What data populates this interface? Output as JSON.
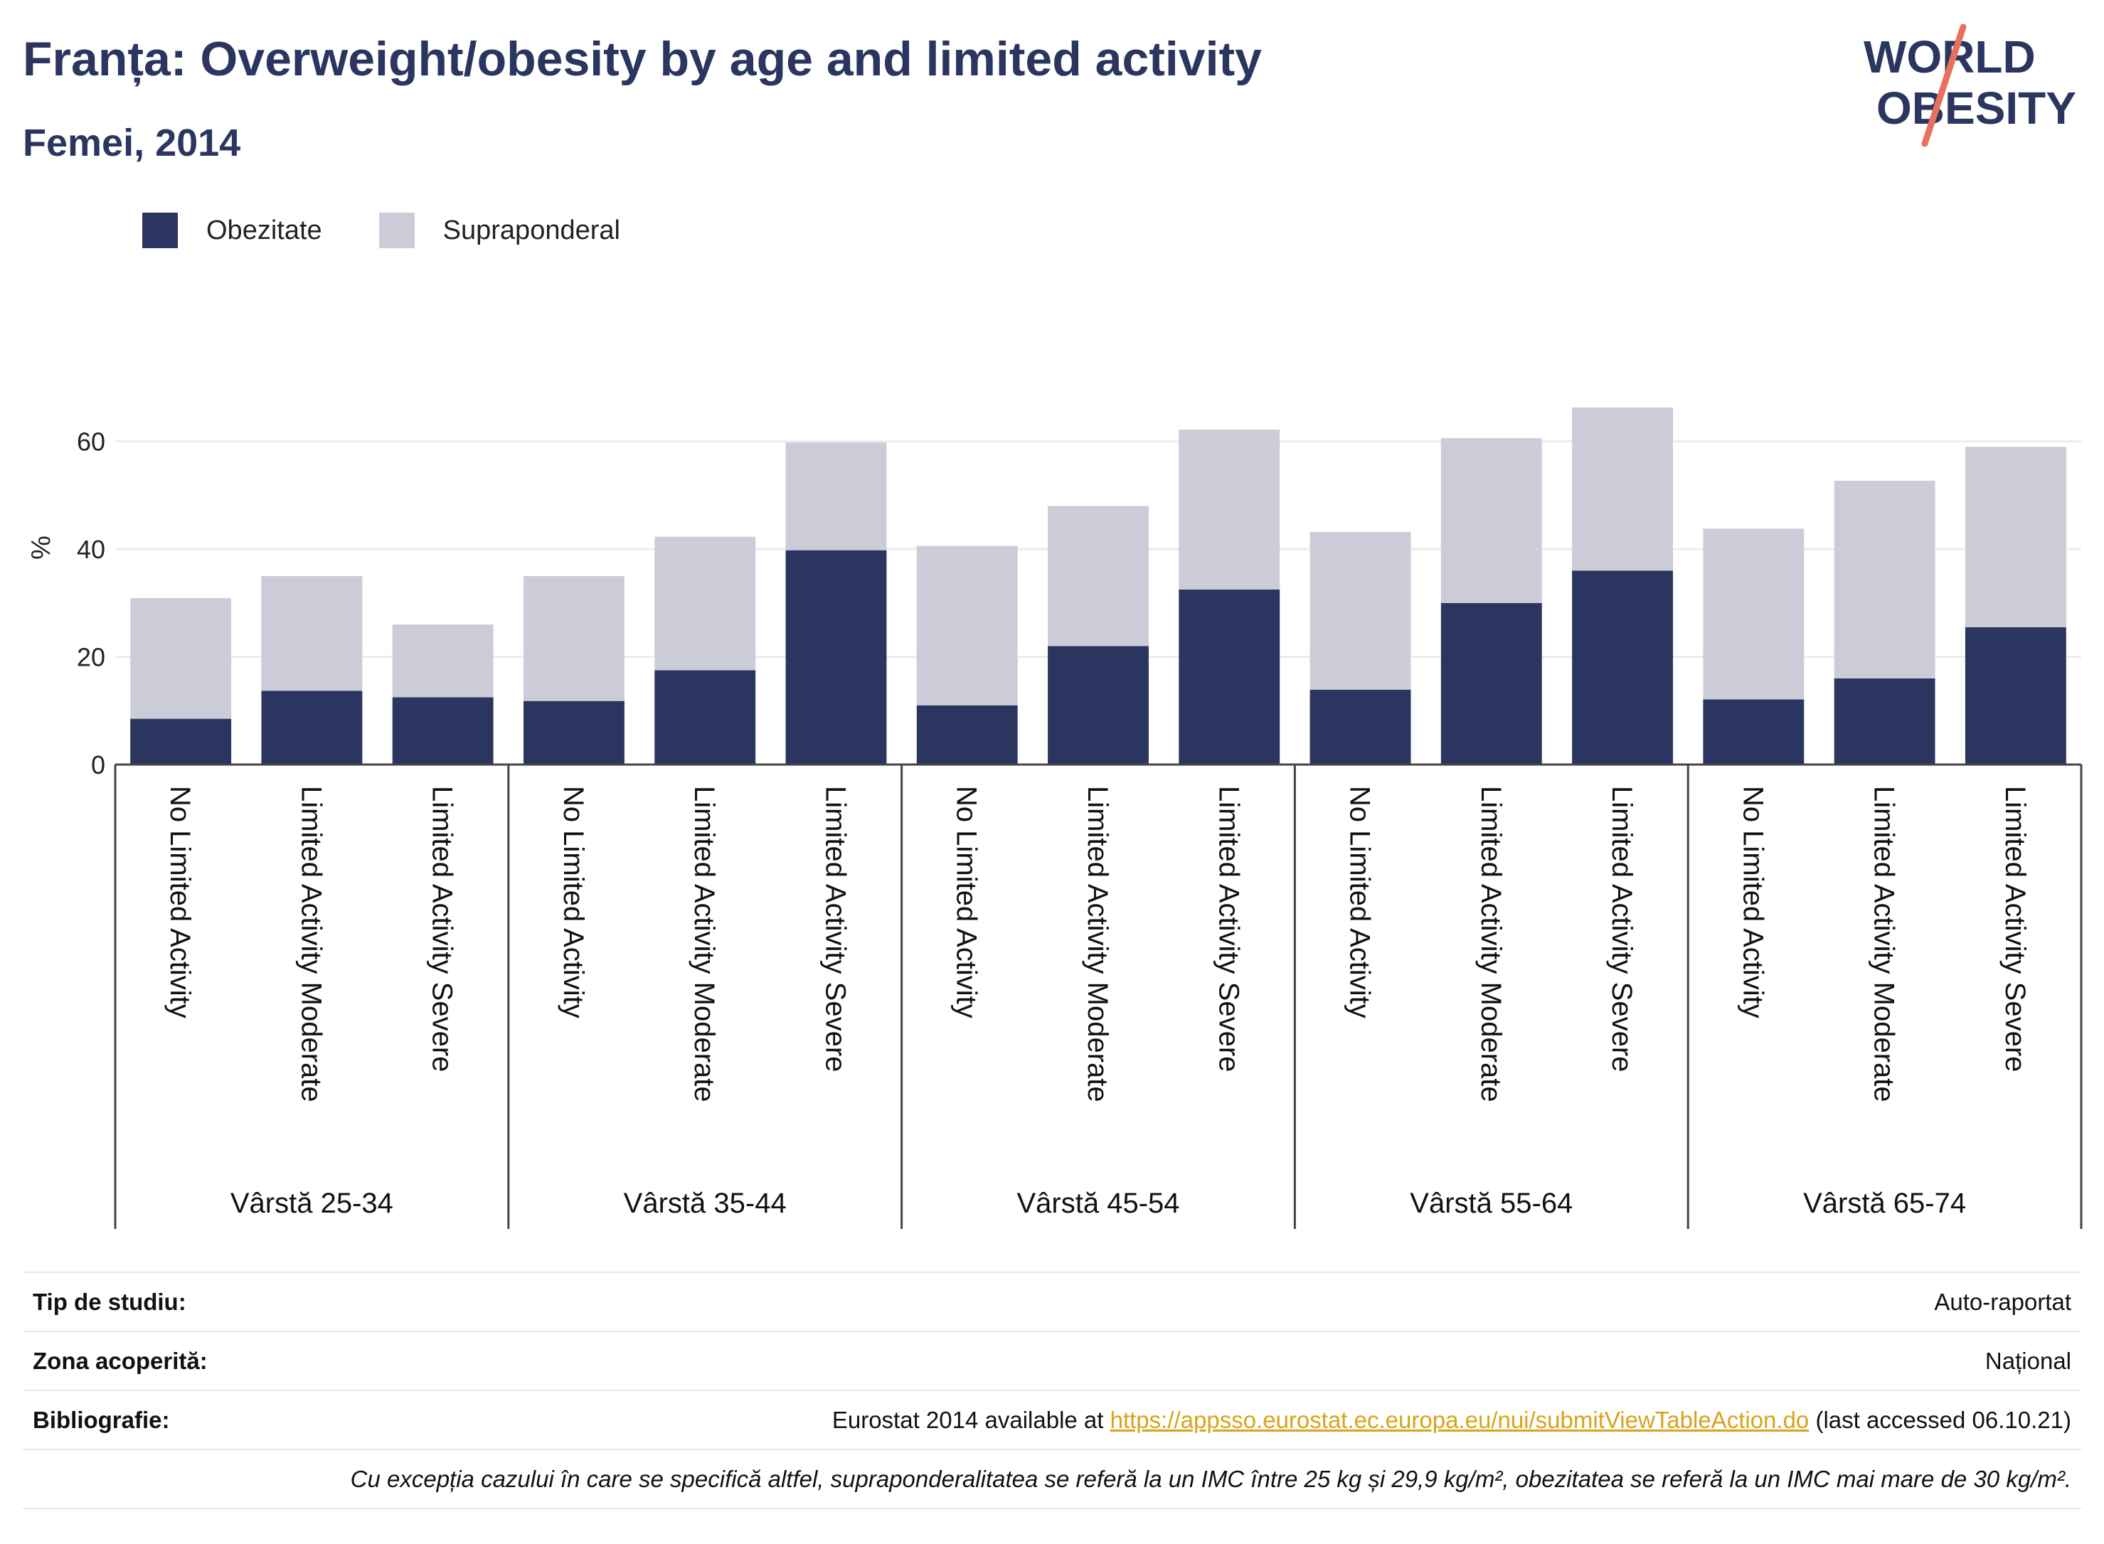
{
  "header": {
    "title": "Franța: Overweight/obesity by age and limited activity",
    "subtitle": "Femei, 2014"
  },
  "logo": {
    "line1": "WORLD",
    "line2": "OBESITY",
    "accent_color": "#e8705f",
    "text_color": "#2b3660"
  },
  "colors": {
    "obesity": "#2b3660",
    "overweight": "#cbccd8",
    "axis": "#444444",
    "grid": "#ececec"
  },
  "chart_data": {
    "type": "bar",
    "stacked": true,
    "ylabel": "%",
    "ylim": [
      0,
      70
    ],
    "yticks": [
      0,
      20,
      40,
      60
    ],
    "grid": true,
    "legend_position": "top-left",
    "groups": [
      "Vârstă 25-34",
      "Vârstă 35-44",
      "Vârstă 45-54",
      "Vârstă 55-64",
      "Vârstă 65-74"
    ],
    "categories": [
      "No Limited Activity",
      "Limited Activity Moderate",
      "Limited Activity Severe"
    ],
    "series": [
      {
        "name": "Obezitate",
        "color": "#2b3660",
        "values": [
          [
            8.5,
            13.7,
            12.5
          ],
          [
            11.8,
            17.5,
            39.8
          ],
          [
            11.0,
            22.0,
            32.5
          ],
          [
            13.9,
            30.0,
            36.0
          ],
          [
            12.1,
            16.0,
            25.5
          ]
        ]
      },
      {
        "name": "Supraponderal",
        "color": "#cbccd8",
        "values": [
          [
            22.4,
            21.3,
            13.5
          ],
          [
            23.2,
            24.8,
            20.0
          ],
          [
            29.6,
            26.0,
            29.7
          ],
          [
            29.3,
            30.6,
            30.3
          ],
          [
            31.7,
            36.7,
            33.5
          ]
        ]
      }
    ]
  },
  "info": {
    "study_type_label": "Tip de studiu:",
    "study_type_value": "Auto-raportat",
    "coverage_label": "Zona acoperită:",
    "coverage_value": "Național",
    "bibliography_label": "Bibliografie:",
    "bibliography_prefix": "Eurostat 2014 available at ",
    "bibliography_link": "https://appsso.eurostat.ec.europa.eu/nui/submitViewTableAction.do",
    "bibliography_suffix": " (last accessed 06.10.21)",
    "note": "Cu excepția cazului în care se specifică altfel, supraponderalitatea se referă la un IMC între 25 kg și 29,9 kg/m², obezitatea se referă la un IMC mai mare de 30 kg/m²."
  }
}
